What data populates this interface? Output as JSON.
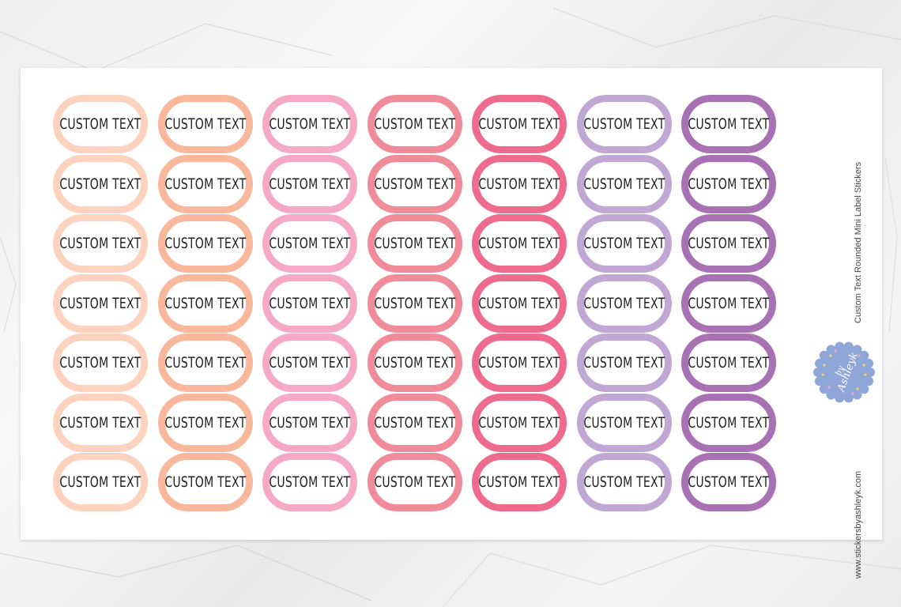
{
  "sheet": {
    "title": "Custom Text Rounded Mini Label Stickers",
    "website": "www.stickersbyashleyk.com",
    "brand": {
      "by": "by",
      "name": "Ashleyk"
    }
  },
  "sticker_label": "CUSTOM TEXT",
  "columns": [
    {
      "color": "#fdd3bf"
    },
    {
      "color": "#f9b79c"
    },
    {
      "color": "#f6a9c5"
    },
    {
      "color": "#f08b9a"
    },
    {
      "color": "#ef6b8d"
    },
    {
      "color": "#c0a7d4"
    },
    {
      "color": "#a871b4"
    }
  ],
  "rows": 7,
  "badge_color": "#8fa6d8"
}
